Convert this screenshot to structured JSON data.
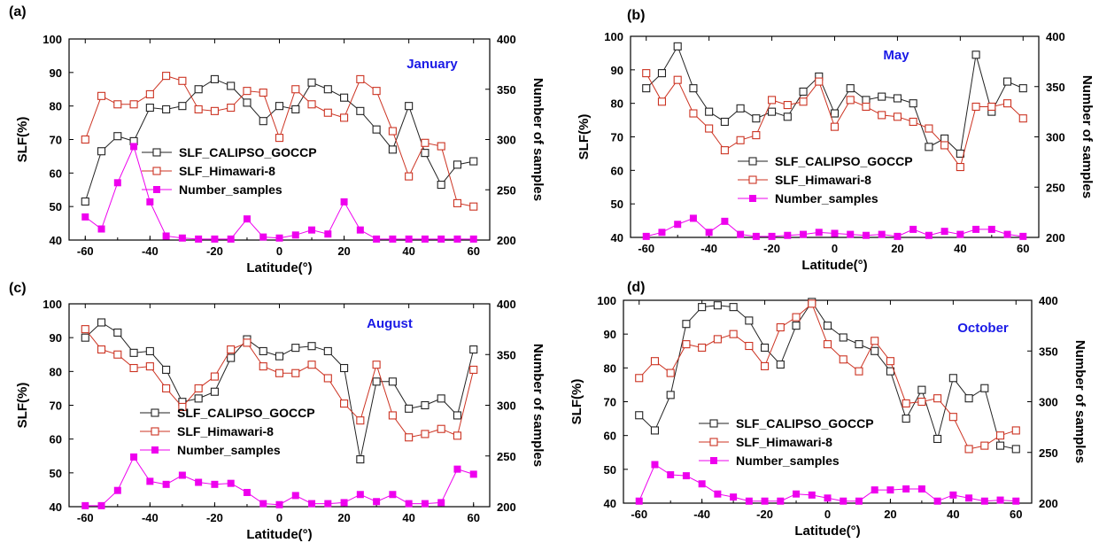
{
  "colors": {
    "calipso": "#222222",
    "himawari": "#cc3322",
    "samples": "#ee00ee",
    "month_title": "#1a1ae6"
  },
  "chart_data": [
    {
      "type": "line",
      "panel_label": "(a)",
      "title": "January",
      "xlabel": "Latitude(°)",
      "ylabel": "SLF(%)",
      "y2label": "Number of samples",
      "xlim": [
        -65,
        65
      ],
      "ylim": [
        40,
        100
      ],
      "y2lim": [
        200,
        400
      ],
      "xticks": [
        -60,
        -40,
        -20,
        0,
        20,
        40,
        60
      ],
      "yticks": [
        40,
        50,
        60,
        70,
        80,
        90,
        100
      ],
      "y2ticks": [
        200,
        250,
        300,
        350,
        400
      ],
      "legend_position": "center-left",
      "x": [
        -60,
        -55,
        -50,
        -45,
        -40,
        -35,
        -30,
        -25,
        -20,
        -15,
        -10,
        -5,
        0,
        5,
        10,
        15,
        20,
        25,
        30,
        35,
        40,
        45,
        50,
        55,
        60
      ],
      "series": [
        {
          "name": "SLF_CALIPSO_GOCCP",
          "axis": "left",
          "marker": "open-square",
          "color_key": "calipso",
          "values": [
            51.5,
            66.5,
            71,
            69.5,
            79.5,
            79,
            80,
            85,
            88,
            86,
            81,
            75.5,
            80,
            79,
            87,
            85,
            82.5,
            78.5,
            73,
            67,
            80,
            66,
            56.5,
            62.5,
            63.5
          ]
        },
        {
          "name": "SLF_Himawari-8",
          "axis": "left",
          "marker": "open-square",
          "color_key": "himawari",
          "values": [
            70,
            83,
            80.5,
            80.5,
            83.5,
            89,
            87.5,
            79,
            78.5,
            79.5,
            84.5,
            84,
            70.5,
            85,
            80.5,
            78,
            76.5,
            88,
            84.5,
            72.5,
            59,
            69,
            68,
            51,
            50
          ]
        },
        {
          "name": "Number_samples",
          "axis": "right",
          "marker": "filled-square",
          "color_key": "samples",
          "values": [
            223,
            211,
            257,
            293,
            238,
            204,
            202,
            201,
            201,
            201,
            221,
            203,
            202,
            205,
            210,
            206,
            238,
            210,
            201,
            201,
            201,
            201,
            201,
            201,
            201
          ]
        }
      ]
    },
    {
      "type": "line",
      "panel_label": "(b)",
      "title": "May",
      "xlabel": "Latitude(°)",
      "ylabel": "SLF(%)",
      "y2label": "Number of samples",
      "xlim": [
        -65,
        65
      ],
      "ylim": [
        40,
        100
      ],
      "y2lim": [
        200,
        400
      ],
      "xticks": [
        -60,
        -40,
        -20,
        0,
        20,
        40,
        60
      ],
      "yticks": [
        40,
        50,
        60,
        70,
        80,
        90,
        100
      ],
      "y2ticks": [
        200,
        250,
        300,
        350,
        400
      ],
      "legend_position": "center-left",
      "x": [
        -60,
        -55,
        -50,
        -45,
        -40,
        -35,
        -30,
        -25,
        -20,
        -15,
        -10,
        -5,
        0,
        5,
        10,
        15,
        20,
        25,
        30,
        35,
        40,
        45,
        50,
        55,
        60
      ],
      "series": [
        {
          "name": "SLF_CALIPSO_GOCCP",
          "axis": "left",
          "marker": "open-square",
          "color_key": "calipso",
          "values": [
            84.5,
            89,
            97,
            84.5,
            77.5,
            74.5,
            78.5,
            75.5,
            77.5,
            76,
            83.5,
            88,
            77,
            84.5,
            81,
            82,
            81.5,
            80,
            67,
            69.5,
            65,
            94.5,
            77.5,
            86.5,
            84.5
          ]
        },
        {
          "name": "SLF_Himawari-8",
          "axis": "left",
          "marker": "open-square",
          "color_key": "himawari",
          "values": [
            89,
            80.5,
            87,
            77,
            72.5,
            66,
            69,
            70.5,
            81,
            79.5,
            80.5,
            86.5,
            73,
            81,
            79,
            76.5,
            76,
            74.5,
            72.5,
            67.5,
            61,
            79,
            79,
            80,
            75.5
          ]
        },
        {
          "name": "Number_samples",
          "axis": "right",
          "marker": "filled-square",
          "color_key": "samples",
          "values": [
            201,
            205,
            213,
            219,
            205,
            216,
            203,
            201,
            201,
            202,
            203,
            205,
            204,
            203,
            202,
            203,
            201,
            208,
            202,
            206,
            203,
            208,
            208,
            203,
            201
          ]
        }
      ]
    },
    {
      "type": "line",
      "panel_label": "(c)",
      "title": "August",
      "xlabel": "Latitude(°)",
      "ylabel": "SLF(%)",
      "y2label": "Number of samples",
      "xlim": [
        -65,
        65
      ],
      "ylim": [
        40,
        100
      ],
      "y2lim": [
        200,
        400
      ],
      "xticks": [
        -60,
        -40,
        -20,
        0,
        20,
        40,
        60
      ],
      "yticks": [
        40,
        50,
        60,
        70,
        80,
        90,
        100
      ],
      "y2ticks": [
        200,
        250,
        300,
        350,
        400
      ],
      "legend_position": "center-left",
      "x": [
        -60,
        -55,
        -50,
        -45,
        -40,
        -35,
        -30,
        -25,
        -20,
        -15,
        -10,
        -5,
        0,
        5,
        10,
        15,
        20,
        25,
        30,
        35,
        40,
        45,
        50,
        55,
        60
      ],
      "series": [
        {
          "name": "SLF_CALIPSO_GOCCP",
          "axis": "left",
          "marker": "open-square",
          "color_key": "calipso",
          "values": [
            90,
            94.5,
            91.5,
            85.5,
            86,
            80.5,
            71,
            72,
            74,
            84,
            89.5,
            86,
            84.5,
            87,
            87.5,
            86,
            81,
            54,
            77,
            77,
            69,
            70,
            72,
            67,
            86.5
          ]
        },
        {
          "name": "SLF_Himawari-8",
          "axis": "left",
          "marker": "open-square",
          "color_key": "himawari",
          "values": [
            92.5,
            86.5,
            85,
            81,
            81.5,
            75,
            69.5,
            75,
            78.5,
            86.5,
            88.5,
            81.5,
            79.5,
            79.5,
            82,
            78,
            70.5,
            65.5,
            82,
            67,
            60.5,
            61.5,
            63,
            61,
            80.5
          ]
        },
        {
          "name": "Number_samples",
          "axis": "right",
          "marker": "filled-square",
          "color_key": "samples",
          "values": [
            201,
            201,
            216,
            249,
            225,
            222,
            231,
            224,
            222,
            223,
            214,
            203,
            202,
            211,
            203,
            203,
            204,
            212,
            205,
            212,
            203,
            203,
            204,
            237,
            232
          ]
        }
      ]
    },
    {
      "type": "line",
      "panel_label": "(d)",
      "title": "October",
      "xlabel": "Latitude(°)",
      "ylabel": "SLF(%)",
      "y2label": "Number of samples",
      "xlim": [
        -65,
        65
      ],
      "ylim": [
        40,
        100
      ],
      "y2lim": [
        200,
        400
      ],
      "xticks": [
        -60,
        -40,
        -20,
        0,
        20,
        40,
        60
      ],
      "yticks": [
        40,
        50,
        60,
        70,
        80,
        90,
        100
      ],
      "y2ticks": [
        200,
        250,
        300,
        350,
        400
      ],
      "legend_position": "center-left",
      "x": [
        -60,
        -55,
        -50,
        -45,
        -40,
        -35,
        -30,
        -25,
        -20,
        -15,
        -10,
        -5,
        0,
        5,
        10,
        15,
        20,
        25,
        30,
        35,
        40,
        45,
        50,
        55,
        60
      ],
      "series": [
        {
          "name": "SLF_CALIPSO_GOCCP",
          "axis": "left",
          "marker": "open-square",
          "color_key": "calipso",
          "values": [
            66,
            61.5,
            72,
            93,
            98,
            98.5,
            98,
            94,
            86,
            81,
            92.5,
            99.5,
            92.5,
            89,
            87,
            85,
            79,
            65,
            73.5,
            59,
            77,
            71,
            74,
            57,
            56
          ]
        },
        {
          "name": "SLF_Himawari-8",
          "axis": "left",
          "marker": "open-square",
          "color_key": "himawari",
          "values": [
            77,
            82,
            78.5,
            87,
            86,
            88.5,
            90,
            86.5,
            80.5,
            92,
            95,
            99,
            87,
            82.5,
            79,
            88,
            82,
            69.5,
            70,
            71,
            65.5,
            56,
            57,
            60,
            61.5
          ]
        },
        {
          "name": "Number_samples",
          "axis": "right",
          "marker": "filled-square",
          "color_key": "samples",
          "values": [
            202,
            238,
            228,
            227,
            219,
            209,
            206,
            202,
            202,
            202,
            209,
            208,
            205,
            202,
            202,
            213,
            213,
            214,
            214,
            202,
            208,
            205,
            202,
            203,
            202
          ]
        }
      ]
    }
  ]
}
